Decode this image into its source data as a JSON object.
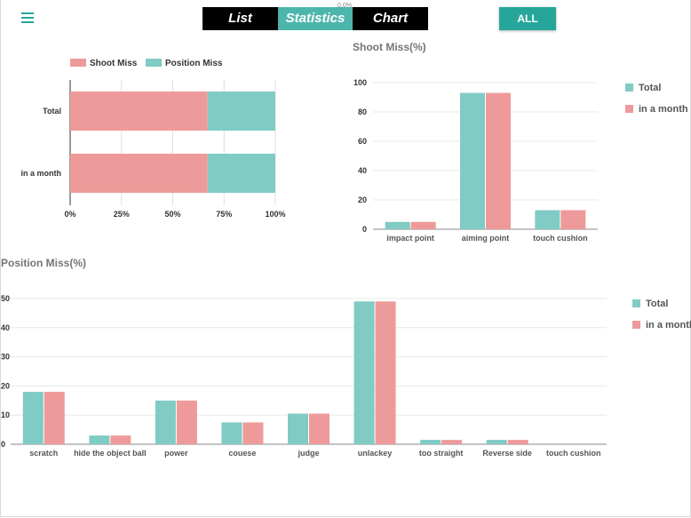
{
  "nav": {
    "tabs": [
      {
        "label": "List"
      },
      {
        "label": "Statistics"
      },
      {
        "label": "Chart"
      }
    ],
    "active_tab": "Statistics",
    "tab_note": "0.0%",
    "all_button": "ALL"
  },
  "colors": {
    "teal": "#80cbc4",
    "pink": "#ef9a9a",
    "accent": "#26a69a"
  },
  "chart_data": [
    {
      "type": "bar",
      "orientation": "horizontal",
      "stacked": "percent",
      "title": "",
      "categories": [
        "Total",
        "in a month"
      ],
      "series": [
        {
          "name": "Shoot Miss",
          "color": "#ef9a9a",
          "values": [
            67,
            67
          ]
        },
        {
          "name": "Position Miss",
          "color": "#80cbc4",
          "values": [
            33,
            33
          ]
        }
      ],
      "x_ticks": [
        "0%",
        "25%",
        "50%",
        "75%",
        "100%"
      ],
      "xlim": [
        0,
        100
      ],
      "legend": "top"
    },
    {
      "type": "bar",
      "title": "Shoot Miss(%)",
      "categories": [
        "impact point",
        "aiming point",
        "touch cushion"
      ],
      "series": [
        {
          "name": "Total",
          "color": "#80cbc4",
          "values": [
            5,
            93,
            13
          ]
        },
        {
          "name": "in a month",
          "color": "#ef9a9a",
          "values": [
            5,
            93,
            13
          ]
        }
      ],
      "y_ticks": [
        "0",
        "20",
        "40",
        "60",
        "80",
        "100"
      ],
      "ylim": [
        0,
        100
      ],
      "legend": "right"
    },
    {
      "type": "bar",
      "title": "Position Miss(%)",
      "categories": [
        "scratch",
        "hide the object ball",
        "power",
        "couese",
        "judge",
        "unlackey",
        "too straight",
        "Reverse side",
        "touch cushion"
      ],
      "series": [
        {
          "name": "Total",
          "color": "#80cbc4",
          "values": [
            18,
            3,
            15,
            7.5,
            10.5,
            49,
            1.5,
            1.5,
            0
          ]
        },
        {
          "name": "in a month",
          "color": "#ef9a9a",
          "values": [
            18,
            3,
            15,
            7.5,
            10.5,
            49,
            1.5,
            1.5,
            0
          ]
        }
      ],
      "y_ticks": [
        "0",
        "10",
        "20",
        "30",
        "40",
        "50"
      ],
      "ylim": [
        0,
        50
      ],
      "legend": "right"
    }
  ]
}
